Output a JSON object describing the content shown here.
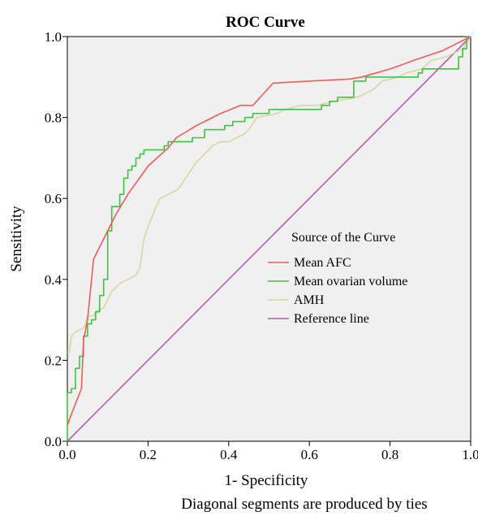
{
  "chart_data": {
    "type": "line",
    "title": "ROC Curve",
    "xlabel": "1- Specificity",
    "ylabel": "Sensitivity",
    "footnote": "Diagonal segments are produced by ties",
    "xlim": [
      0,
      1
    ],
    "ylim": [
      0,
      1
    ],
    "x_ticks": [
      0,
      0.2,
      0.4,
      0.6,
      0.8,
      1
    ],
    "x_tick_labels": [
      "0.0",
      "0.2",
      "0.4",
      "0.6",
      "0.8",
      "1.0"
    ],
    "y_ticks": [
      0,
      0.2,
      0.4,
      0.6,
      0.8,
      1
    ],
    "y_tick_labels": [
      "0.0",
      "0.2",
      "0.4",
      "0.6",
      "0.8",
      "1.0"
    ],
    "grid": false,
    "plot_background": "#f0f0f0",
    "legend": {
      "title": "Source of the Curve",
      "placement": "center-right"
    },
    "series": [
      {
        "name": "Mean AFC",
        "color": "#f05a5a",
        "points": [
          [
            0,
            0.04
          ],
          [
            0.015,
            0.08
          ],
          [
            0.035,
            0.13
          ],
          [
            0.04,
            0.25
          ],
          [
            0.05,
            0.3
          ],
          [
            0.065,
            0.45
          ],
          [
            0.09,
            0.5
          ],
          [
            0.12,
            0.56
          ],
          [
            0.15,
            0.61
          ],
          [
            0.2,
            0.68
          ],
          [
            0.25,
            0.725
          ],
          [
            0.27,
            0.75
          ],
          [
            0.32,
            0.78
          ],
          [
            0.38,
            0.81
          ],
          [
            0.43,
            0.83
          ],
          [
            0.46,
            0.83
          ],
          [
            0.51,
            0.885
          ],
          [
            0.6,
            0.89
          ],
          [
            0.7,
            0.895
          ],
          [
            0.73,
            0.9
          ],
          [
            0.8,
            0.92
          ],
          [
            0.87,
            0.945
          ],
          [
            0.9,
            0.955
          ],
          [
            0.93,
            0.965
          ],
          [
            0.96,
            0.98
          ],
          [
            1,
            1
          ]
        ]
      },
      {
        "name": "Mean ovarian volume",
        "color": "#3fc23f",
        "points": [
          [
            0,
            0
          ],
          [
            0,
            0.12
          ],
          [
            0.01,
            0.12
          ],
          [
            0.01,
            0.13
          ],
          [
            0.02,
            0.13
          ],
          [
            0.02,
            0.18
          ],
          [
            0.03,
            0.18
          ],
          [
            0.03,
            0.21
          ],
          [
            0.04,
            0.21
          ],
          [
            0.04,
            0.26
          ],
          [
            0.05,
            0.26
          ],
          [
            0.05,
            0.29
          ],
          [
            0.06,
            0.29
          ],
          [
            0.06,
            0.3
          ],
          [
            0.07,
            0.3
          ],
          [
            0.07,
            0.32
          ],
          [
            0.08,
            0.32
          ],
          [
            0.08,
            0.36
          ],
          [
            0.09,
            0.36
          ],
          [
            0.09,
            0.4
          ],
          [
            0.1,
            0.4
          ],
          [
            0.1,
            0.52
          ],
          [
            0.11,
            0.52
          ],
          [
            0.11,
            0.58
          ],
          [
            0.13,
            0.58
          ],
          [
            0.13,
            0.61
          ],
          [
            0.14,
            0.61
          ],
          [
            0.14,
            0.65
          ],
          [
            0.15,
            0.65
          ],
          [
            0.15,
            0.67
          ],
          [
            0.16,
            0.67
          ],
          [
            0.16,
            0.68
          ],
          [
            0.17,
            0.68
          ],
          [
            0.17,
            0.7
          ],
          [
            0.18,
            0.7
          ],
          [
            0.18,
            0.71
          ],
          [
            0.19,
            0.71
          ],
          [
            0.19,
            0.72
          ],
          [
            0.24,
            0.72
          ],
          [
            0.24,
            0.73
          ],
          [
            0.25,
            0.73
          ],
          [
            0.25,
            0.74
          ],
          [
            0.31,
            0.74
          ],
          [
            0.31,
            0.75
          ],
          [
            0.34,
            0.75
          ],
          [
            0.34,
            0.77
          ],
          [
            0.39,
            0.77
          ],
          [
            0.39,
            0.78
          ],
          [
            0.41,
            0.78
          ],
          [
            0.41,
            0.79
          ],
          [
            0.44,
            0.79
          ],
          [
            0.44,
            0.8
          ],
          [
            0.46,
            0.8
          ],
          [
            0.46,
            0.81
          ],
          [
            0.5,
            0.81
          ],
          [
            0.5,
            0.82
          ],
          [
            0.63,
            0.82
          ],
          [
            0.63,
            0.83
          ],
          [
            0.65,
            0.83
          ],
          [
            0.65,
            0.84
          ],
          [
            0.67,
            0.84
          ],
          [
            0.67,
            0.85
          ],
          [
            0.71,
            0.85
          ],
          [
            0.71,
            0.89
          ],
          [
            0.74,
            0.89
          ],
          [
            0.74,
            0.9
          ],
          [
            0.87,
            0.9
          ],
          [
            0.87,
            0.91
          ],
          [
            0.88,
            0.91
          ],
          [
            0.88,
            0.92
          ],
          [
            0.97,
            0.92
          ],
          [
            0.97,
            0.95
          ],
          [
            0.98,
            0.95
          ],
          [
            0.98,
            0.97
          ],
          [
            0.99,
            0.97
          ],
          [
            0.99,
            1
          ],
          [
            1,
            1
          ]
        ]
      },
      {
        "name": "AMH",
        "color": "#d6d6a4",
        "points": [
          [
            0,
            0.22
          ],
          [
            0.005,
            0.22
          ],
          [
            0.01,
            0.26
          ],
          [
            0.02,
            0.27
          ],
          [
            0.03,
            0.275
          ],
          [
            0.04,
            0.28
          ],
          [
            0.045,
            0.29
          ],
          [
            0.05,
            0.31
          ],
          [
            0.065,
            0.31
          ],
          [
            0.07,
            0.32
          ],
          [
            0.09,
            0.33
          ],
          [
            0.11,
            0.37
          ],
          [
            0.12,
            0.38
          ],
          [
            0.13,
            0.39
          ],
          [
            0.15,
            0.4
          ],
          [
            0.17,
            0.41
          ],
          [
            0.18,
            0.43
          ],
          [
            0.19,
            0.5
          ],
          [
            0.2,
            0.53
          ],
          [
            0.22,
            0.58
          ],
          [
            0.23,
            0.6
          ],
          [
            0.25,
            0.61
          ],
          [
            0.27,
            0.62
          ],
          [
            0.28,
            0.63
          ],
          [
            0.3,
            0.66
          ],
          [
            0.32,
            0.69
          ],
          [
            0.34,
            0.71
          ],
          [
            0.36,
            0.73
          ],
          [
            0.38,
            0.74
          ],
          [
            0.4,
            0.74
          ],
          [
            0.42,
            0.75
          ],
          [
            0.44,
            0.76
          ],
          [
            0.45,
            0.77
          ],
          [
            0.47,
            0.8
          ],
          [
            0.52,
            0.81
          ],
          [
            0.54,
            0.82
          ],
          [
            0.58,
            0.83
          ],
          [
            0.62,
            0.83
          ],
          [
            0.66,
            0.84
          ],
          [
            0.72,
            0.85
          ],
          [
            0.76,
            0.87
          ],
          [
            0.78,
            0.89
          ],
          [
            0.82,
            0.9
          ],
          [
            0.84,
            0.91
          ],
          [
            0.88,
            0.92
          ],
          [
            0.9,
            0.94
          ],
          [
            0.94,
            0.95
          ],
          [
            0.96,
            0.96
          ],
          [
            0.98,
            0.97
          ],
          [
            1,
            1
          ]
        ]
      },
      {
        "name": "Reference line",
        "color": "#b05fb0",
        "points": [
          [
            0,
            0
          ],
          [
            1,
            1
          ]
        ]
      }
    ]
  }
}
